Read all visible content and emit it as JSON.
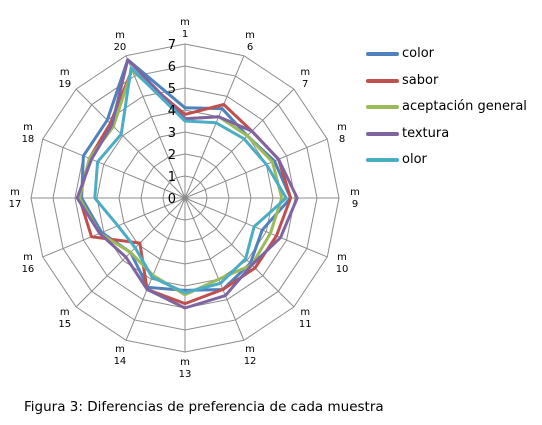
{
  "chart_data": {
    "type": "radar",
    "categories": [
      "m 1",
      "m 6",
      "m 7",
      "m 8",
      "m 9",
      "m 10",
      "m 11",
      "m 12",
      "m 13",
      "m 14",
      "m 15",
      "m 16",
      "m 17",
      "m 18",
      "m 19",
      "m 20"
    ],
    "rlim": [
      0,
      7
    ],
    "ticks": [
      "0",
      "1",
      "2",
      "3",
      "4",
      "5",
      "6",
      "7"
    ],
    "grid": true,
    "legend_position": "right",
    "series": [
      {
        "name": "color",
        "color": "#4F81BD",
        "values": [
          4.1,
          4.4,
          4.0,
          4.4,
          4.8,
          3.8,
          4.2,
          4.5,
          4.2,
          4.4,
          3.5,
          4.1,
          4.7,
          5.0,
          5.0,
          6.8
        ]
      },
      {
        "name": "sabor",
        "color": "#C0504D",
        "values": [
          3.8,
          4.6,
          4.3,
          4.6,
          4.8,
          4.5,
          4.5,
          4.5,
          4.8,
          4.5,
          2.9,
          4.6,
          4.8,
          4.7,
          4.8,
          6.3
        ]
      },
      {
        "name": "aceptación general",
        "color": "#9BBB59",
        "values": [
          3.6,
          4.0,
          4.0,
          4.3,
          4.4,
          4.2,
          4.3,
          4.0,
          4.4,
          3.8,
          3.5,
          4.2,
          4.8,
          4.7,
          4.6,
          6.3
        ]
      },
      {
        "name": "textura",
        "color": "#8064A2",
        "values": [
          3.6,
          4.0,
          4.3,
          4.6,
          5.1,
          4.7,
          4.3,
          4.8,
          5.0,
          4.5,
          3.8,
          4.2,
          4.9,
          4.6,
          4.7,
          6.8
        ]
      },
      {
        "name": "olor",
        "color": "#4BACC6",
        "values": [
          3.5,
          3.7,
          3.8,
          4.0,
          4.6,
          3.4,
          3.9,
          4.2,
          4.3,
          3.9,
          3.2,
          3.3,
          4.1,
          4.3,
          4.1,
          6.4
        ]
      }
    ]
  },
  "caption": "Figura 3: Diferencias de preferencia de cada muestra"
}
